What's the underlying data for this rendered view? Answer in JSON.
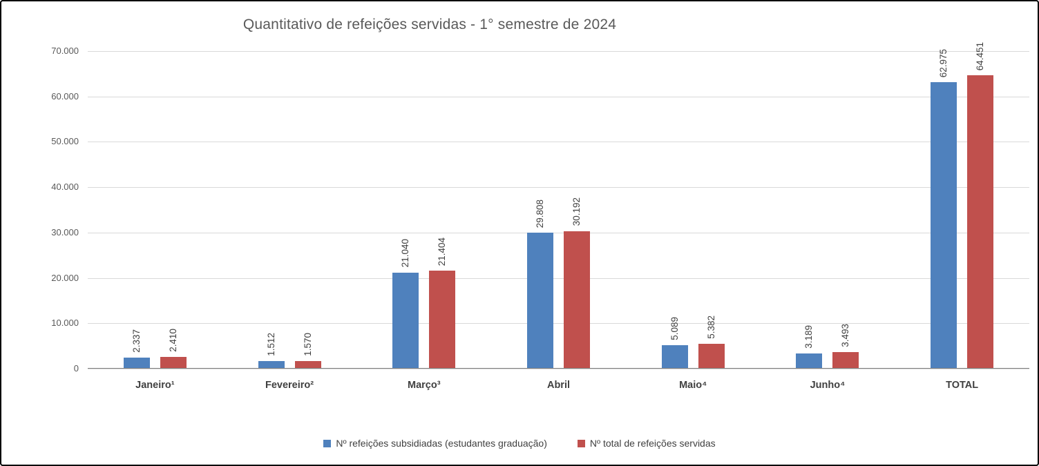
{
  "chart_data": {
    "type": "bar",
    "title": "Quantitativo de refeições servidas - 1° semestre de 2024",
    "categories": [
      "Janeiro¹",
      "Fevereiro²",
      "Março³",
      "Abril",
      "Maio⁴",
      "Junho⁴",
      "TOTAL"
    ],
    "series": [
      {
        "name": "Nº refeições subsidiadas (estudantes graduação)",
        "color": "#4F81BD",
        "values": [
          2337,
          1512,
          21040,
          29808,
          5089,
          3189,
          62975
        ],
        "labels": [
          "2.337",
          "1.512",
          "21.040",
          "29.808",
          "5.089",
          "3.189",
          "62.975"
        ]
      },
      {
        "name": "Nº total de refeições servidas",
        "color": "#C0504D",
        "values": [
          2410,
          1570,
          21404,
          30192,
          5382,
          3493,
          64451
        ],
        "labels": [
          "2.410",
          "1.570",
          "21.404",
          "30.192",
          "5.382",
          "3.493",
          "64.451"
        ]
      }
    ],
    "ylim": [
      0,
      70000
    ],
    "ytick_step": 10000,
    "ytick_labels": [
      "0",
      "10.000",
      "20.000",
      "30.000",
      "40.000",
      "50.000",
      "60.000",
      "70.000"
    ],
    "grid": true,
    "legend_position": "bottom"
  }
}
